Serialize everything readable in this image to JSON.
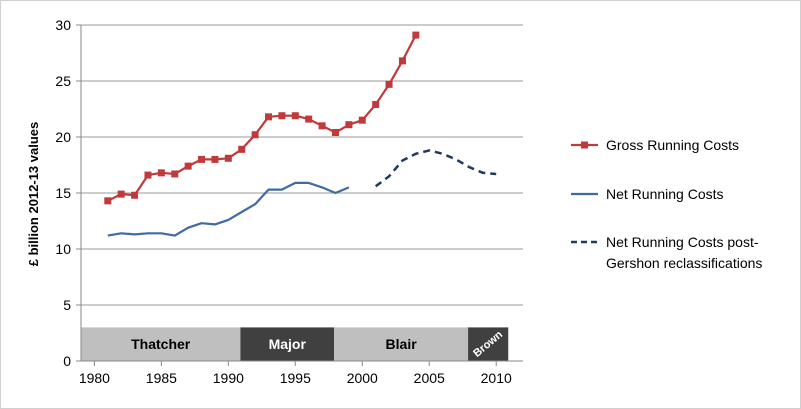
{
  "chart_data": {
    "type": "line",
    "ylabel": "£ billion 2012-13 values",
    "xlabel": "",
    "xlim": [
      1979,
      2012
    ],
    "ylim": [
      0,
      30
    ],
    "xticks": [
      1980,
      1985,
      1990,
      1995,
      2000,
      2005,
      2010
    ],
    "yticks": [
      0,
      5,
      10,
      15,
      20,
      25,
      30
    ],
    "grid": "horizontal",
    "legend_position": "right",
    "series": [
      {
        "name": "Gross Running Costs",
        "color": "#c0393b",
        "style": "solid",
        "marker": "square",
        "x": [
          1981,
          1982,
          1983,
          1984,
          1985,
          1986,
          1987,
          1988,
          1989,
          1990,
          1991,
          1992,
          1993,
          1994,
          1995,
          1996,
          1997,
          1998,
          1999,
          2000,
          2001,
          2002,
          2003,
          2004
        ],
        "y": [
          14.3,
          14.9,
          14.8,
          16.6,
          16.8,
          16.7,
          17.4,
          18.0,
          18.0,
          18.1,
          18.9,
          20.2,
          21.8,
          21.9,
          21.9,
          21.6,
          21.0,
          20.4,
          21.1,
          21.5,
          22.9,
          24.7,
          26.8,
          29.1
        ]
      },
      {
        "name": "Net Running Costs",
        "color": "#3f6aa6",
        "style": "solid",
        "marker": "none",
        "x": [
          1981,
          1982,
          1983,
          1984,
          1985,
          1986,
          1987,
          1988,
          1989,
          1990,
          1991,
          1992,
          1993,
          1994,
          1995,
          1996,
          1997,
          1998,
          1999
        ],
        "y": [
          11.2,
          11.4,
          11.3,
          11.4,
          11.4,
          11.2,
          11.9,
          12.3,
          12.2,
          12.6,
          13.3,
          14.0,
          15.3,
          15.3,
          15.9,
          15.9,
          15.5,
          15.0,
          15.5
        ]
      },
      {
        "name": "Net Running Costs post-Gershon reclassifications",
        "legend_lines": [
          "Net Running Costs post-",
          "Gershon reclassifications"
        ],
        "color": "#1f3a5f",
        "style": "dashed",
        "marker": "none",
        "x": [
          2001,
          2002,
          2003,
          2004,
          2005,
          2006,
          2007,
          2008,
          2009,
          2010
        ],
        "y": [
          15.6,
          16.5,
          17.9,
          18.5,
          18.8,
          18.5,
          18.0,
          17.3,
          16.8,
          16.7
        ]
      }
    ],
    "eras": [
      {
        "label": "Thatcher",
        "start": 1979,
        "end": 1990.9,
        "fill": "#bfbfbf",
        "text_color": "#000000"
      },
      {
        "label": "Major",
        "start": 1990.9,
        "end": 1997.9,
        "fill": "#404040",
        "text_color": "#ffffff"
      },
      {
        "label": "Blair",
        "start": 1997.9,
        "end": 2007.9,
        "fill": "#bfbfbf",
        "text_color": "#000000"
      },
      {
        "label": "Brown",
        "start": 2007.9,
        "end": 2010.9,
        "fill": "#404040",
        "text_color": "#ffffff",
        "rotated": true
      }
    ],
    "era_band_range": [
      0,
      3
    ]
  }
}
